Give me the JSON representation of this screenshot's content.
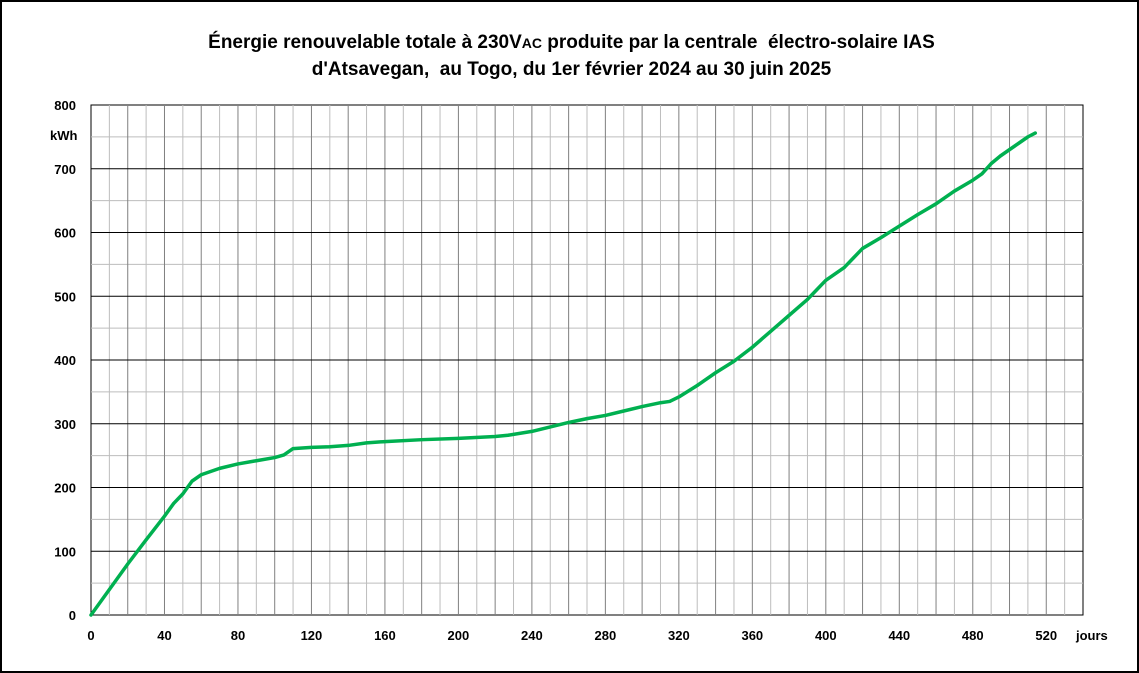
{
  "chart_data": {
    "type": "line",
    "title_line1_a": "Énergie renouvelable totale à 230V",
    "title_line1_sub": "AC",
    "title_line1_b": " produite par la centrale  électro-solaire IAS",
    "title_line2": "d'Atsavegan,  au Togo, du 1er février 2024 au 30 juin 2025",
    "xlabel": "jours",
    "ylabel": "kWh",
    "xlim": [
      0,
      540
    ],
    "ylim": [
      0,
      800
    ],
    "x_ticks": [
      0,
      40,
      80,
      120,
      160,
      200,
      240,
      280,
      320,
      360,
      400,
      440,
      480,
      520
    ],
    "y_ticks": [
      0,
      100,
      200,
      300,
      400,
      500,
      600,
      700,
      800
    ],
    "grid": true,
    "line_color": "#00b050",
    "x": [
      0,
      10,
      20,
      30,
      40,
      45,
      50,
      55,
      60,
      70,
      80,
      90,
      100,
      105,
      110,
      120,
      130,
      140,
      150,
      160,
      180,
      200,
      220,
      227,
      240,
      250,
      260,
      270,
      280,
      290,
      300,
      310,
      315,
      320,
      330,
      340,
      350,
      360,
      370,
      380,
      390,
      395,
      400,
      410,
      415,
      420,
      430,
      440,
      450,
      460,
      470,
      480,
      485,
      490,
      495,
      500,
      505,
      510,
      514
    ],
    "y": [
      0,
      40,
      80,
      118,
      155,
      175,
      190,
      210,
      220,
      230,
      237,
      242,
      247,
      251,
      261,
      263,
      264,
      266,
      270,
      272,
      275,
      277,
      280,
      282,
      288,
      295,
      302,
      308,
      313,
      320,
      327,
      333,
      335,
      342,
      360,
      380,
      398,
      420,
      445,
      470,
      495,
      510,
      525,
      545,
      560,
      575,
      592,
      610,
      628,
      645,
      665,
      682,
      692,
      708,
      720,
      730,
      740,
      750,
      756
    ]
  }
}
